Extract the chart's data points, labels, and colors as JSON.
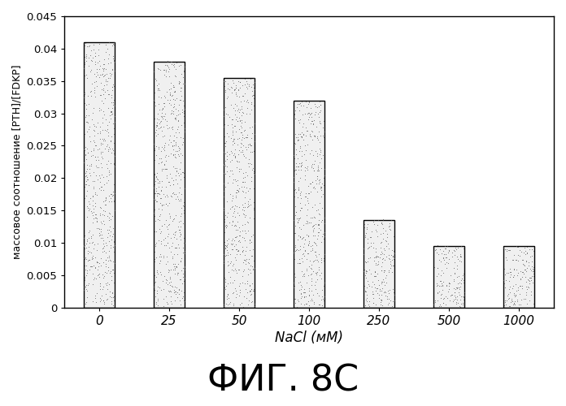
{
  "categories": [
    "0",
    "25",
    "50",
    "100",
    "250",
    "500",
    "1000"
  ],
  "values": [
    0.041,
    0.038,
    0.0355,
    0.032,
    0.0135,
    0.0095,
    0.0095
  ],
  "bar_color": "#f0f0f0",
  "bar_edge_color": "#000000",
  "bar_linewidth": 1.0,
  "xlabel": "NaCl (мМ)",
  "ylabel": "массовое соотношение [PTH]/[FDKP]",
  "ylim": [
    0,
    0.045
  ],
  "yticks": [
    0,
    0.005,
    0.01,
    0.015,
    0.02,
    0.025,
    0.03,
    0.035,
    0.04,
    0.045
  ],
  "ytick_labels": [
    "0",
    "0.005",
    "0.01",
    "0.015",
    "0.02",
    "0.025",
    "0.03",
    "0.035",
    "0.04",
    "0.045"
  ],
  "title": "ФИГ. 8С",
  "background_color": "#ffffff",
  "figsize": [
    6.96,
    5.0
  ],
  "dpi": 100
}
